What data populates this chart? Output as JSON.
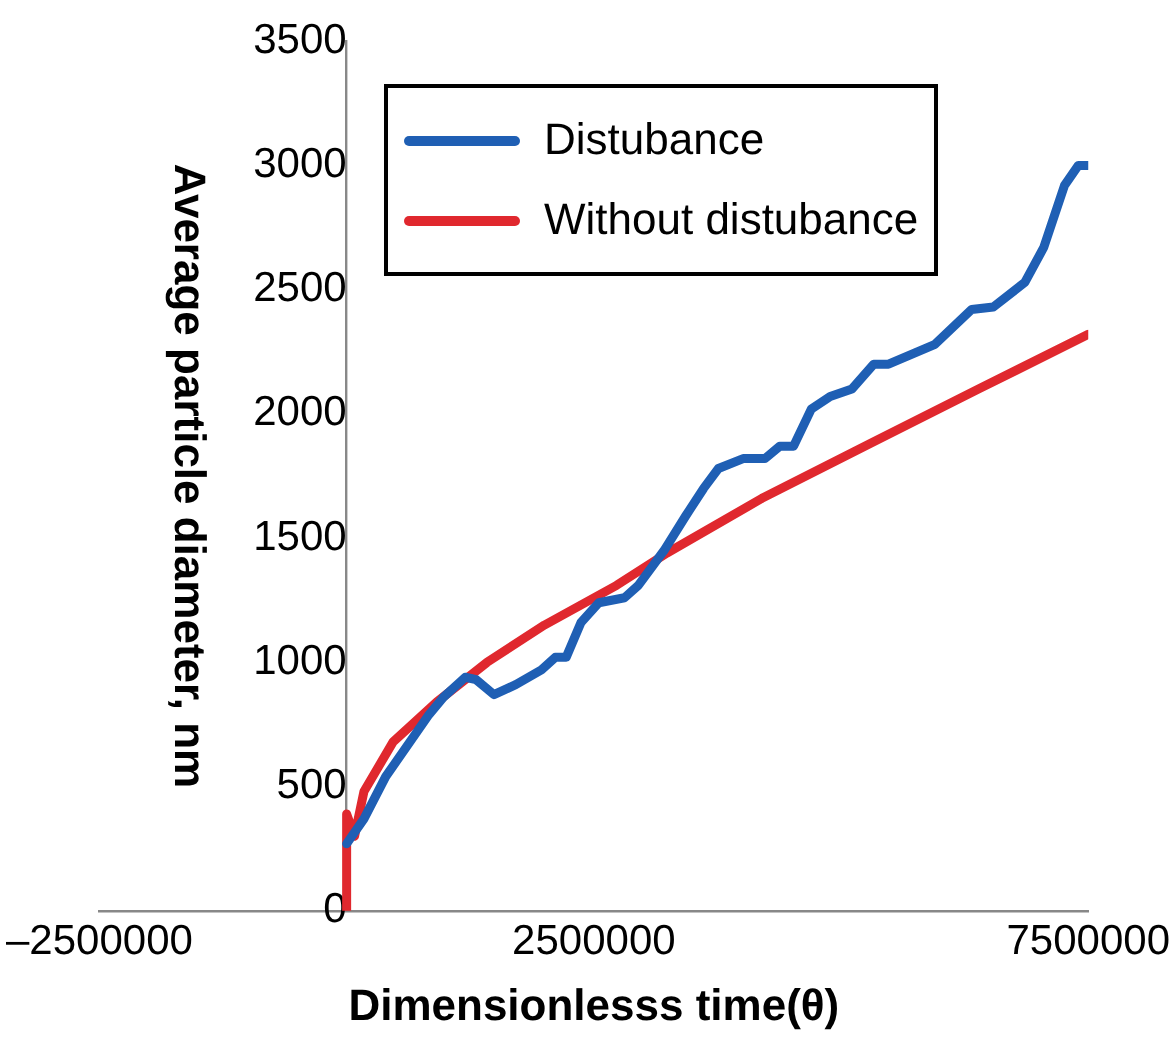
{
  "chart_data": {
    "type": "line",
    "xlabel": "Dimensionlesss time(θ)",
    "ylabel": "Average particle diameter, nm",
    "xlim": [
      -2500000,
      7500000
    ],
    "xticks": [
      {
        "value": -2500000,
        "label": "–2500000"
      },
      2500000,
      7500000
    ],
    "ylim": [
      0,
      3500
    ],
    "yticks": [
      0,
      500,
      1000,
      1500,
      2000,
      2500,
      3000,
      3500
    ],
    "grid": false,
    "legend": "top",
    "marker": "none",
    "line_style": "solid",
    "series": [
      {
        "name": "Distubance",
        "color": "#1f5fb4",
        "x": [
          0,
          175000,
          395000,
          833000,
          980000,
          1200000,
          1310000,
          1490000,
          1710000,
          1970000,
          2110000,
          2220000,
          2370000,
          2550000,
          2810000,
          2950000,
          3210000,
          3430000,
          3610000,
          3760000,
          4010000,
          4230000,
          4380000,
          4520000,
          4700000,
          4890000,
          5110000,
          5330000,
          5480000,
          5950000,
          6320000,
          6540000,
          6860000,
          7050000,
          7260000,
          7400000,
          7500000
        ],
        "values": [
          270,
          370,
          540,
          790,
          860,
          940,
          930,
          870,
          910,
          970,
          1020,
          1020,
          1160,
          1240,
          1260,
          1310,
          1450,
          1590,
          1700,
          1780,
          1820,
          1820,
          1870,
          1870,
          2020,
          2070,
          2100,
          2200,
          2200,
          2280,
          2420,
          2430,
          2530,
          2670,
          2920,
          3000,
          3000
        ]
      },
      {
        "name": "Without distubance",
        "color": "#e0282e",
        "x": [
          0,
          0,
          80000,
          175000,
          470000,
          910000,
          1420000,
          2000000,
          2730000,
          3240000,
          4200000,
          5290000,
          6390000,
          7500000
        ],
        "values": [
          0,
          390,
          300,
          480,
          680,
          840,
          1000,
          1150,
          1310,
          1440,
          1660,
          1880,
          2100,
          2320
        ]
      }
    ]
  }
}
